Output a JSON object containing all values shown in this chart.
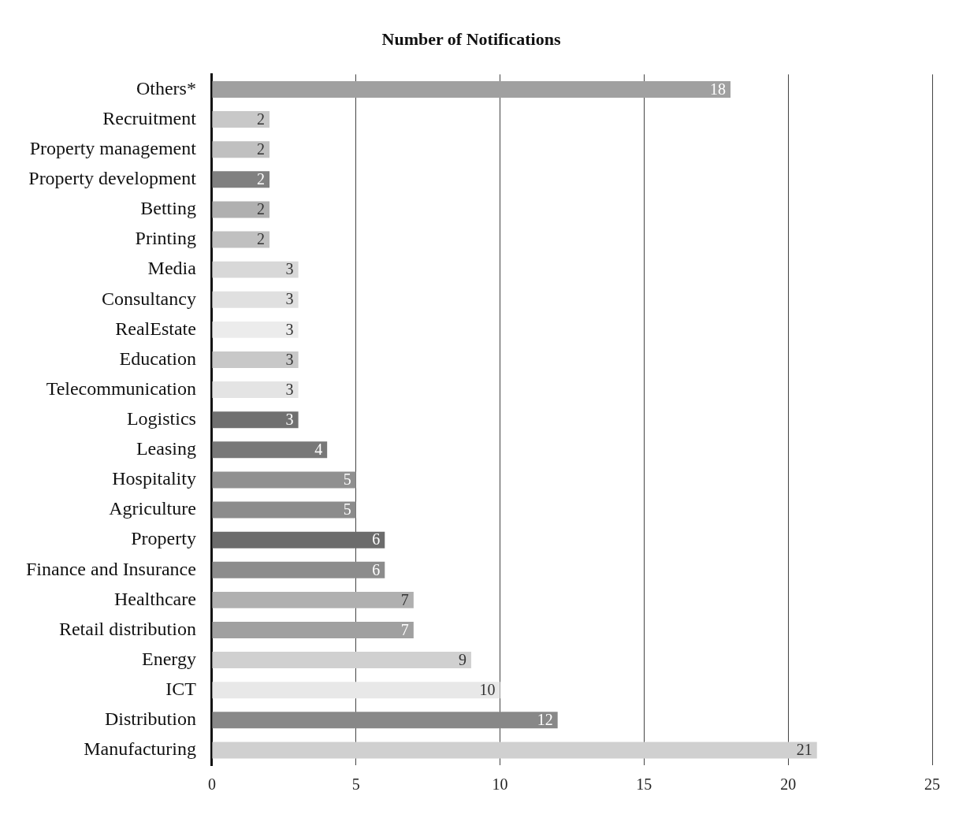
{
  "chart_data": {
    "type": "bar",
    "orientation": "horizontal",
    "title": "Number of Notifications",
    "categories": [
      "Others*",
      "Recruitment",
      "Property management",
      "Property development",
      "Betting",
      "Printing",
      "Media",
      "Consultancy",
      "RealEstate",
      "Education",
      "Telecommunication",
      "Logistics",
      "Leasing",
      "Hospitality",
      "Agriculture",
      "Property",
      "Finance and Insurance",
      "Healthcare",
      "Retail distribution",
      "Energy",
      "ICT",
      "Distribution",
      "Manufacturing"
    ],
    "values": [
      18,
      2,
      2,
      2,
      2,
      2,
      3,
      3,
      3,
      3,
      3,
      3,
      4,
      5,
      5,
      6,
      6,
      7,
      7,
      9,
      10,
      12,
      21
    ],
    "colors": [
      "#a0a0a0",
      "#c8c8c8",
      "#c0c0c0",
      "#808080",
      "#b0b0b0",
      "#c0c0c0",
      "#d8d8d8",
      "#e0e0e0",
      "#ececec",
      "#c8c8c8",
      "#e4e4e4",
      "#707070",
      "#787878",
      "#909090",
      "#8c8c8c",
      "#6c6c6c",
      "#8c8c8c",
      "#b0b0b0",
      "#a0a0a0",
      "#d0d0d0",
      "#e8e8e8",
      "#888888",
      "#d0d0d0"
    ],
    "xlim": [
      0,
      25
    ],
    "xticks": [
      0,
      5,
      10,
      15,
      20,
      25
    ],
    "grid": "x",
    "legend": false,
    "data_labels": true
  }
}
